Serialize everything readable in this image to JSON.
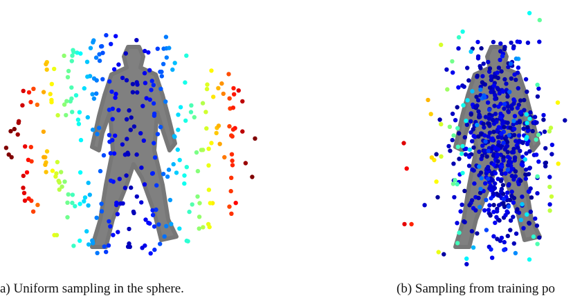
{
  "figure": {
    "subfigures": [
      {
        "caption": "a) Uniform sampling in the sphere."
      },
      {
        "caption": "(b) Sampling from training po"
      }
    ]
  }
}
